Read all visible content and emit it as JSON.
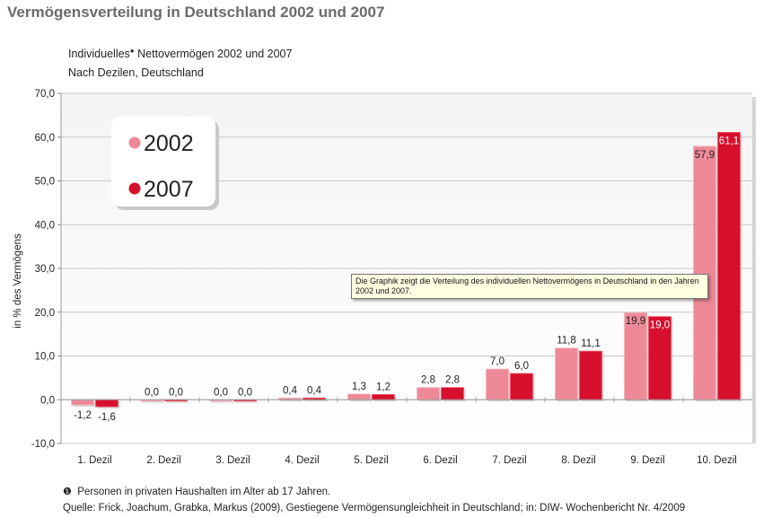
{
  "page": {
    "title": "Vermögensverteilung in Deutschland 2002 und 2007",
    "subtitle_main": "Individuelles",
    "subtitle_sup": "●",
    "subtitle_rest": " Nettovermögen 2002 und 2007",
    "subtitle2": "Nach Dezilen, Deutschland",
    "tooltip": "Die Graphik zeigt die Verteilung des individuellen Nettovermögens in Deutschland in den Jahren 2002 und 2007.",
    "footnote_bullet": "❶",
    "footnote": "Personen in  privaten Haushalten im Alter ab 17 Jahren.",
    "source": "Quelle: Frick, Joachum, Grabka, Markus (2009), Gestiegene Vermögensungleichheit in Deutschland;  in: DIW- Wochenbericht Nr. 4/2009"
  },
  "chart_data": {
    "type": "bar",
    "categories": [
      "1. Dezil",
      "2. Dezil",
      "3. Dezil",
      "4. Dezil",
      "5. Dezil",
      "6. Dezil",
      "7. Dezil",
      "8. Dezil",
      "9. Dezil",
      "10. Dezil"
    ],
    "series": [
      {
        "name": "2002",
        "color": "#ee8a98",
        "values": [
          -1.2,
          0.0,
          0.0,
          0.4,
          1.3,
          2.8,
          7.0,
          11.8,
          19.9,
          57.9
        ],
        "labels": [
          "-1,2",
          "0,0",
          "0,0",
          "0,4",
          "1,3",
          "2,8",
          "7,0",
          "11,8",
          "19,9",
          "57,9"
        ]
      },
      {
        "name": "2007",
        "color": "#d6102c",
        "values": [
          -1.6,
          0.0,
          0.0,
          0.4,
          1.2,
          2.8,
          6.0,
          11.1,
          19.0,
          61.1
        ],
        "labels": [
          "-1,6",
          "0,0",
          "0,0",
          "0,4",
          "1,2",
          "2,8",
          "6,0",
          "11,1",
          "19,0",
          "61,1"
        ]
      }
    ],
    "ylabel": "in % des Vermögens",
    "ylim": [
      -10,
      70
    ],
    "yticks": [
      -10,
      0,
      10,
      20,
      30,
      40,
      50,
      60,
      70
    ],
    "ytick_labels": [
      "-10,0",
      "0,0",
      "10,0",
      "20,0",
      "30,0",
      "40,0",
      "50,0",
      "60,0",
      "70,0"
    ],
    "grid": true,
    "legend_position": "top-left"
  }
}
